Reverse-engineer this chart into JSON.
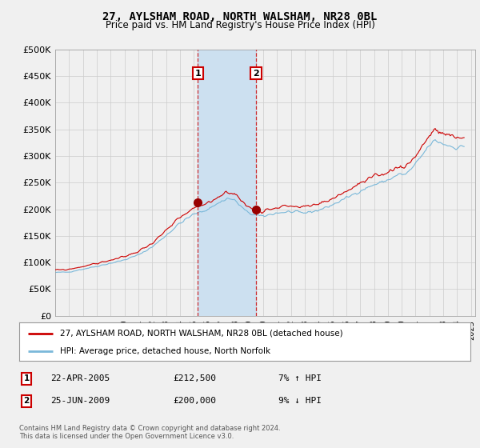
{
  "title": "27, AYLSHAM ROAD, NORTH WALSHAM, NR28 0BL",
  "subtitle": "Price paid vs. HM Land Registry's House Price Index (HPI)",
  "hpi_label": "HPI: Average price, detached house, North Norfolk",
  "property_label": "27, AYLSHAM ROAD, NORTH WALSHAM, NR28 0BL (detached house)",
  "sale1_date": "22-APR-2005",
  "sale1_price": 212500,
  "sale1_hpi": "7% ↑ HPI",
  "sale1_year": 2005.29,
  "sale2_date": "25-JUN-2009",
  "sale2_price": 200000,
  "sale2_hpi": "9% ↓ HPI",
  "sale2_year": 2009.49,
  "hpi_color": "#7ab8d9",
  "property_color": "#cc0000",
  "sale_marker_color": "#990000",
  "shading_color": "#cce0f0",
  "background_color": "#f0f0f0",
  "plot_background": "#f0f0f0",
  "grid_color": "#cccccc",
  "ylim": [
    0,
    500000
  ],
  "yticks": [
    0,
    50000,
    100000,
    150000,
    200000,
    250000,
    300000,
    350000,
    400000,
    450000,
    500000
  ],
  "footnote": "Contains HM Land Registry data © Crown copyright and database right 2024.\nThis data is licensed under the Open Government Licence v3.0."
}
